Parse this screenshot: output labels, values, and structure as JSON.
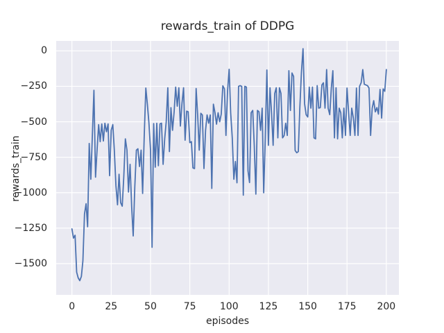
{
  "chart_data": {
    "type": "line",
    "title": "rewards_train of DDPG",
    "xlabel": "episodes",
    "ylabel": "rewards_train",
    "grid": true,
    "legend": false,
    "xlim": [
      -10,
      208
    ],
    "ylim": [
      -1720,
      70
    ],
    "xticks": {
      "values": [
        0,
        25,
        50,
        75,
        100,
        125,
        150,
        175,
        200
      ],
      "labels": [
        "0",
        "25",
        "50",
        "75",
        "100",
        "125",
        "150",
        "175",
        "200"
      ]
    },
    "yticks": {
      "values": [
        0,
        -250,
        -500,
        -750,
        -1000,
        -1250,
        -1500
      ],
      "labels": [
        "0",
        "−250",
        "−500",
        "−750",
        "−1000",
        "−1250",
        "−1500"
      ]
    },
    "style": {
      "figure_bg": "#ffffff",
      "plot_bg": "#eaeaf2",
      "grid_color": "#ffffff",
      "text_color": "#262626",
      "line_color": "#4c72b0"
    },
    "series": [
      {
        "name": "rewards_train",
        "color": "#4c72b0",
        "x_is_index": true,
        "values": [
          -1255,
          -1320,
          -1300,
          -1560,
          -1600,
          -1620,
          -1590,
          -1480,
          -1150,
          -1078,
          -1240,
          -653,
          -905,
          -600,
          -278,
          -890,
          -700,
          -520,
          -640,
          -515,
          -635,
          -510,
          -570,
          -515,
          -880,
          -560,
          -520,
          -700,
          -950,
          -1085,
          -870,
          -1070,
          -1095,
          -890,
          -620,
          -700,
          -995,
          -800,
          -1100,
          -1305,
          -960,
          -700,
          -690,
          -815,
          -700,
          -1005,
          -600,
          -262,
          -375,
          -510,
          -700,
          -1385,
          -513,
          -820,
          -510,
          -810,
          -515,
          -510,
          -800,
          -620,
          -500,
          -260,
          -710,
          -400,
          -560,
          -430,
          -255,
          -390,
          -260,
          -530,
          -370,
          -260,
          -630,
          -425,
          -430,
          -647,
          -640,
          -825,
          -830,
          -265,
          -450,
          -700,
          -440,
          -452,
          -830,
          -560,
          -452,
          -510,
          -452,
          -970,
          -376,
          -436,
          -517,
          -436,
          -500,
          -446,
          -246,
          -268,
          -596,
          -283,
          -130,
          -436,
          -613,
          -905,
          -780,
          -930,
          -250,
          -245,
          -250,
          -1017,
          -250,
          -255,
          -846,
          -928,
          -436,
          -420,
          -666,
          -1010,
          -420,
          -430,
          -560,
          -404,
          -1000,
          -613,
          -135,
          -666,
          -260,
          -436,
          -666,
          -300,
          -260,
          -613,
          -260,
          -300,
          -613,
          -596,
          -510,
          -596,
          -140,
          -420,
          -156,
          -180,
          -702,
          -718,
          -710,
          -400,
          -150,
          15,
          -371,
          -450,
          -466,
          -255,
          -404,
          -255,
          -613,
          -620,
          -245,
          -404,
          -400,
          -240,
          -225,
          -404,
          -132,
          -404,
          -450,
          -260,
          -140,
          -613,
          -260,
          -620,
          -404,
          -436,
          -613,
          -404,
          -596,
          -262,
          -436,
          -596,
          -404,
          -474,
          -596,
          -262,
          -596,
          -250,
          -225,
          -132,
          -235,
          -240,
          -245,
          -262,
          -596,
          -404,
          -351,
          -430,
          -400,
          -446,
          -272,
          -474,
          -268,
          -285,
          -132
        ]
      }
    ]
  }
}
